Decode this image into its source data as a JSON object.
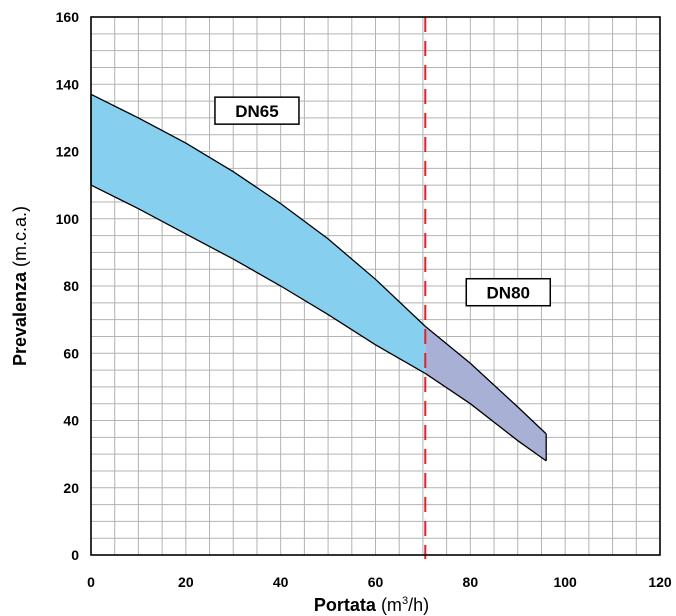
{
  "chart_data": {
    "type": "area",
    "xlabel": {
      "bold": "Portata",
      "normal": "(m",
      "sup": "3",
      "end": "/h)"
    },
    "ylabel": {
      "bold": "Prevalenza",
      "normal": "(m.c.a.)"
    },
    "xlim": [
      0,
      120
    ],
    "ylim": [
      0,
      160
    ],
    "x_ticks": [
      "0",
      "20",
      "40",
      "60",
      "80",
      "100",
      "120"
    ],
    "y_ticks": [
      "0",
      "20",
      "40",
      "60",
      "80",
      "100",
      "120",
      "140",
      "160"
    ],
    "grid": true,
    "minor_grid": true,
    "series": [
      {
        "name": "DN65",
        "color": "#87cfef",
        "upper": [
          [
            0,
            137
          ],
          [
            10,
            130
          ],
          [
            20,
            122.5
          ],
          [
            30,
            114
          ],
          [
            40,
            104.5
          ],
          [
            50,
            94
          ],
          [
            60,
            82
          ],
          [
            70.5,
            68
          ]
        ],
        "lower": [
          [
            0,
            110
          ],
          [
            10,
            103
          ],
          [
            20,
            95.5
          ],
          [
            30,
            88
          ],
          [
            40,
            80
          ],
          [
            50,
            71.5
          ],
          [
            60,
            62.5
          ],
          [
            70.5,
            54
          ]
        ]
      },
      {
        "name": "DN80",
        "color": "#a9b0d6",
        "upper": [
          [
            70.5,
            68
          ],
          [
            80,
            57
          ],
          [
            90,
            44
          ],
          [
            96,
            36
          ]
        ],
        "lower": [
          [
            70.5,
            54
          ],
          [
            80,
            45
          ],
          [
            90,
            34
          ],
          [
            96,
            28
          ]
        ]
      }
    ],
    "divider_x": 70.5,
    "divider_color": "#e0232b",
    "labels": [
      {
        "text": "DN65",
        "x": 35,
        "y": 132
      },
      {
        "text": "DN80",
        "x": 88,
        "y": 78
      }
    ]
  }
}
